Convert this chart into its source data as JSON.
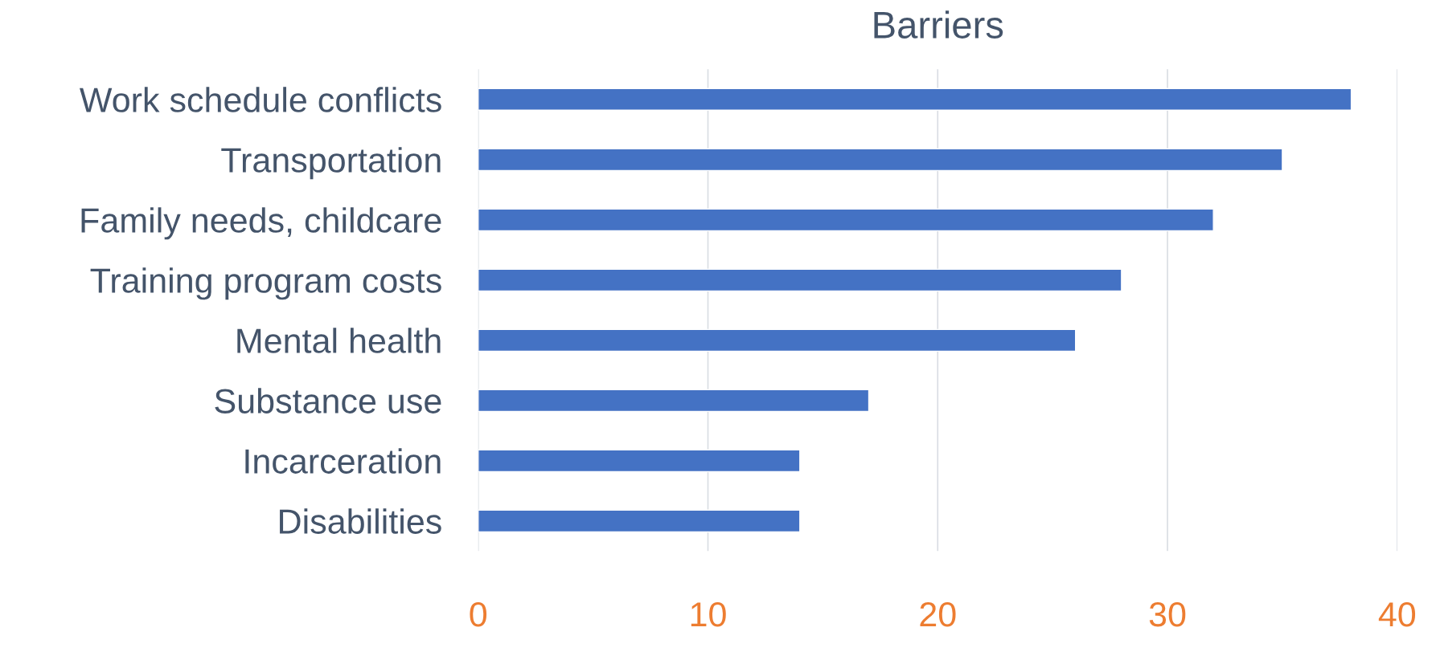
{
  "chart_data": {
    "type": "bar",
    "orientation": "horizontal",
    "title": "Barriers",
    "categories": [
      "Work schedule conflicts",
      "Transportation",
      "Family needs, childcare",
      "Training program costs",
      "Mental health",
      "Substance use",
      "Incarceration",
      "Disabilities"
    ],
    "values": [
      38,
      35,
      32,
      28,
      26,
      17,
      14,
      14
    ],
    "color": "#4472c4",
    "xlim": [
      0,
      40
    ],
    "xticks": [
      0,
      10,
      20,
      30,
      40
    ],
    "grid": "x",
    "legend": false
  }
}
